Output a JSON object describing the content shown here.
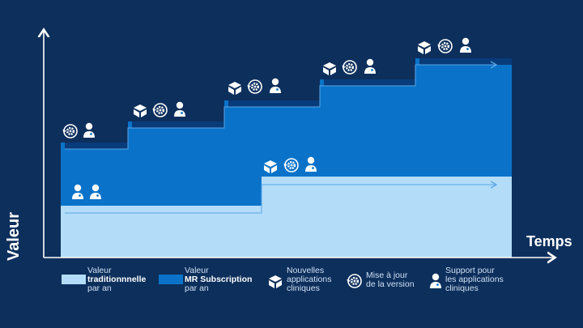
{
  "axes": {
    "y_label": "Valeur",
    "x_label": "Temps"
  },
  "legend": {
    "traditional": {
      "line1": "Valeur",
      "line2": "traditionnnelle",
      "line3": "par an"
    },
    "subscription": {
      "line1": "Valeur",
      "line2": "MR Subscription",
      "line3": "par an"
    },
    "new_apps": {
      "line1": "Nouvelles",
      "line2": "applications",
      "line3": "cliniques"
    },
    "update": {
      "line1": "Mise à jour",
      "line2": "de la version"
    },
    "support": {
      "line1": "Support pour",
      "line2": "les applications",
      "line3": "cliniques"
    }
  },
  "colors": {
    "background": "#0d2f5c",
    "traditional": "#b3dcf9",
    "subscription": "#0a73c9",
    "dark_band": "#083b7a",
    "arrow": "#5aa6e6",
    "icon": "#ffffff"
  },
  "chart_data": {
    "type": "area",
    "series": [
      {
        "name": "Valeur MR Subscription par an",
        "steps": 5,
        "icons_per_step": [
          [
            "update-icon",
            "support-icon"
          ],
          [
            "box-icon",
            "update-icon",
            "support-icon"
          ],
          [
            "box-icon",
            "update-icon",
            "support-icon"
          ],
          [
            "box-icon",
            "update-icon",
            "support-icon"
          ],
          [
            "box-icon",
            "update-icon",
            "support-icon"
          ]
        ]
      },
      {
        "name": "Valeur traditionnnelle par an",
        "steps": 2,
        "icons_per_step": [
          [
            "support-icon",
            "support-icon"
          ],
          [
            "box-icon",
            "update-icon",
            "support-icon"
          ]
        ]
      }
    ]
  }
}
